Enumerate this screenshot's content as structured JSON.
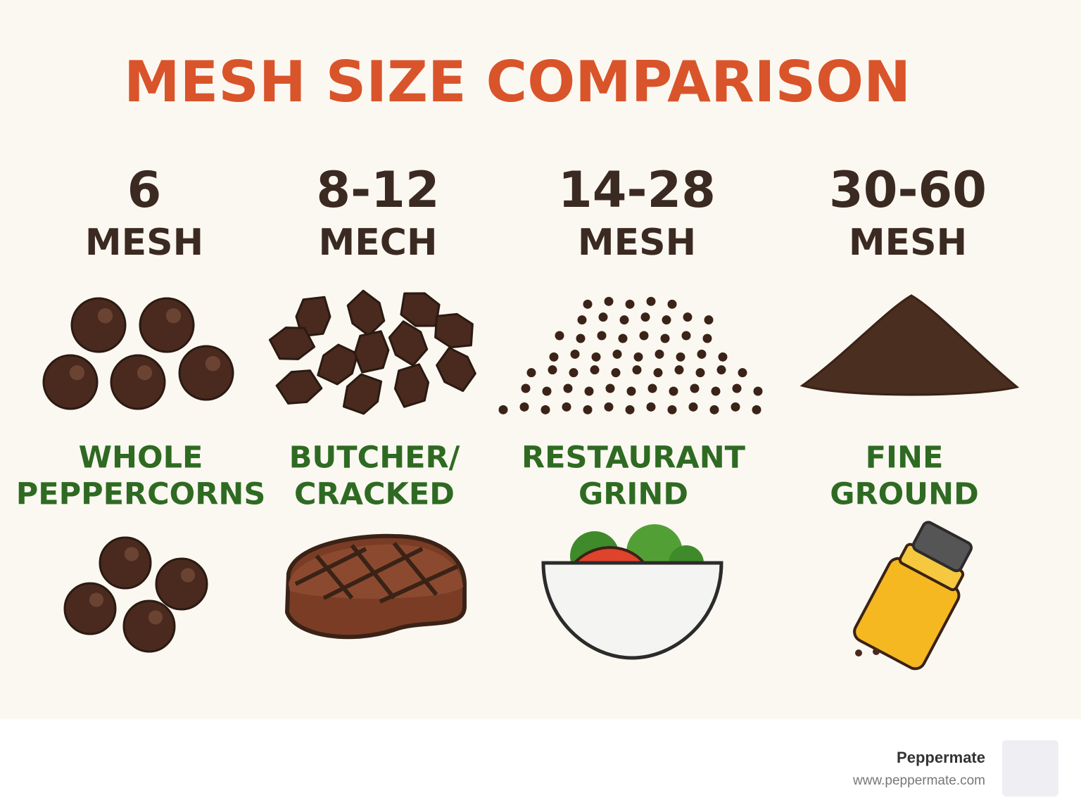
{
  "title": "MESH SIZE COMPARISON",
  "columns": [
    {
      "number": "6",
      "unit": "MESH",
      "label": [
        "WHOLE",
        "PEPPERCORNS"
      ]
    },
    {
      "number": "8-12",
      "unit": "MECH",
      "label": [
        "BUTCHER/",
        "CRACKED"
      ]
    },
    {
      "number": "14-28",
      "unit": "MESH",
      "label": [
        "RESTAURANT",
        "GRIND"
      ]
    },
    {
      "number": "30-60",
      "unit": "MESH",
      "label": [
        "FINE",
        "GROUND"
      ]
    }
  ],
  "footer": {
    "brand": "Peppermate",
    "url": "www.peppermate.com"
  }
}
